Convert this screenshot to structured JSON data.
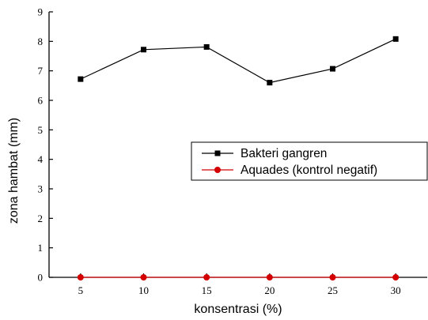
{
  "chart_data": {
    "type": "line",
    "title": "",
    "xlabel": "konsentrasi (%)",
    "ylabel": "zona hambat (mm)",
    "x": [
      5,
      10,
      15,
      20,
      25,
      30
    ],
    "xticks": [
      5,
      10,
      15,
      20,
      25,
      30
    ],
    "xlim": [
      2.5,
      32.5
    ],
    "yticks": [
      0,
      1,
      2,
      3,
      4,
      5,
      6,
      7,
      8,
      9
    ],
    "ylim": [
      0,
      9
    ],
    "grid": false,
    "legend_position": "right",
    "series": [
      {
        "name": "Bakteri gangren",
        "values": [
          6.72,
          7.72,
          7.81,
          6.6,
          7.07,
          8.08
        ],
        "color": "#000000",
        "marker": "square"
      },
      {
        "name": "Aquades (kontrol negatif)",
        "values": [
          0,
          0,
          0,
          0,
          0,
          0
        ],
        "color": "#d40000",
        "marker": "circle"
      }
    ]
  }
}
